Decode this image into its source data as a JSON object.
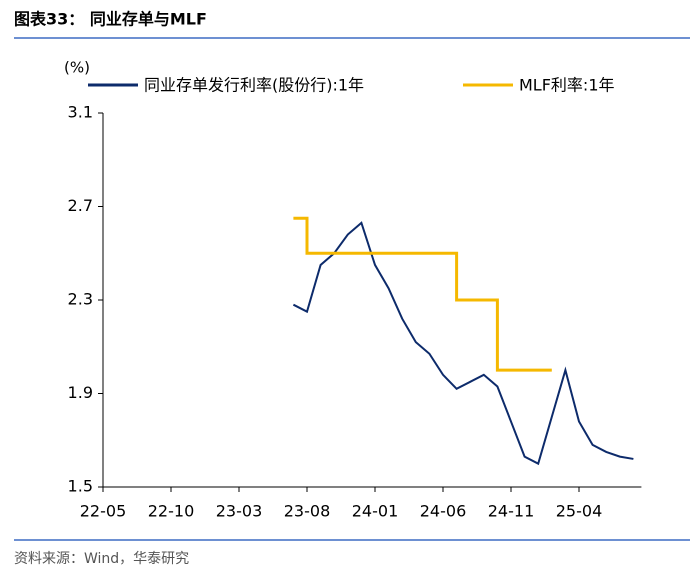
{
  "header": {
    "title": "图表33：  同业存单与MLF"
  },
  "chart_data": {
    "type": "line",
    "y_label": "(%)",
    "x": [
      "22-05",
      "22-06",
      "22-07",
      "22-08",
      "22-09",
      "22-10",
      "22-11",
      "22-12",
      "23-01",
      "23-02",
      "23-03",
      "23-04",
      "23-05",
      "23-06",
      "23-07",
      "23-08",
      "23-09",
      "23-10",
      "23-11",
      "23-12",
      "24-01",
      "24-02",
      "24-03",
      "24-04",
      "24-05",
      "24-06",
      "24-07",
      "24-08",
      "24-09",
      "24-10",
      "24-11",
      "24-12",
      "25-01",
      "25-02",
      "25-03",
      "25-04",
      "25-05",
      "25-06",
      "25-07",
      "25-08"
    ],
    "xticks": [
      "22-05",
      "22-10",
      "23-03",
      "23-08",
      "24-01",
      "24-06",
      "24-11",
      "25-04"
    ],
    "ylim": [
      1.5,
      3.1
    ],
    "yticks": [
      1.5,
      1.9,
      2.3,
      2.7,
      3.1
    ],
    "series": [
      {
        "name": "同业存单发行利率(股份行):1年",
        "color": "#0d2b6b",
        "values": [
          null,
          null,
          null,
          null,
          null,
          null,
          null,
          null,
          null,
          null,
          null,
          null,
          null,
          null,
          2.28,
          2.25,
          2.45,
          2.5,
          2.58,
          2.63,
          2.45,
          2.35,
          2.22,
          2.12,
          2.07,
          1.98,
          1.92,
          1.95,
          1.98,
          1.93,
          1.78,
          1.63,
          1.6,
          1.8,
          2.0,
          1.78,
          1.68,
          1.65,
          1.63,
          1.62
        ]
      },
      {
        "name": "MLF利率:1年",
        "color": "#f5b800",
        "step": true,
        "values": [
          null,
          null,
          null,
          null,
          null,
          null,
          null,
          null,
          null,
          null,
          null,
          null,
          null,
          null,
          2.65,
          2.5,
          2.5,
          2.5,
          2.5,
          2.5,
          2.5,
          2.5,
          2.5,
          2.5,
          2.5,
          2.5,
          2.3,
          2.3,
          2.3,
          2.0,
          2.0,
          2.0,
          2.0,
          2.0,
          null,
          null,
          null,
          null,
          null,
          null
        ]
      }
    ]
  },
  "footer": {
    "source": "资料来源：Wind，华泰研究"
  }
}
